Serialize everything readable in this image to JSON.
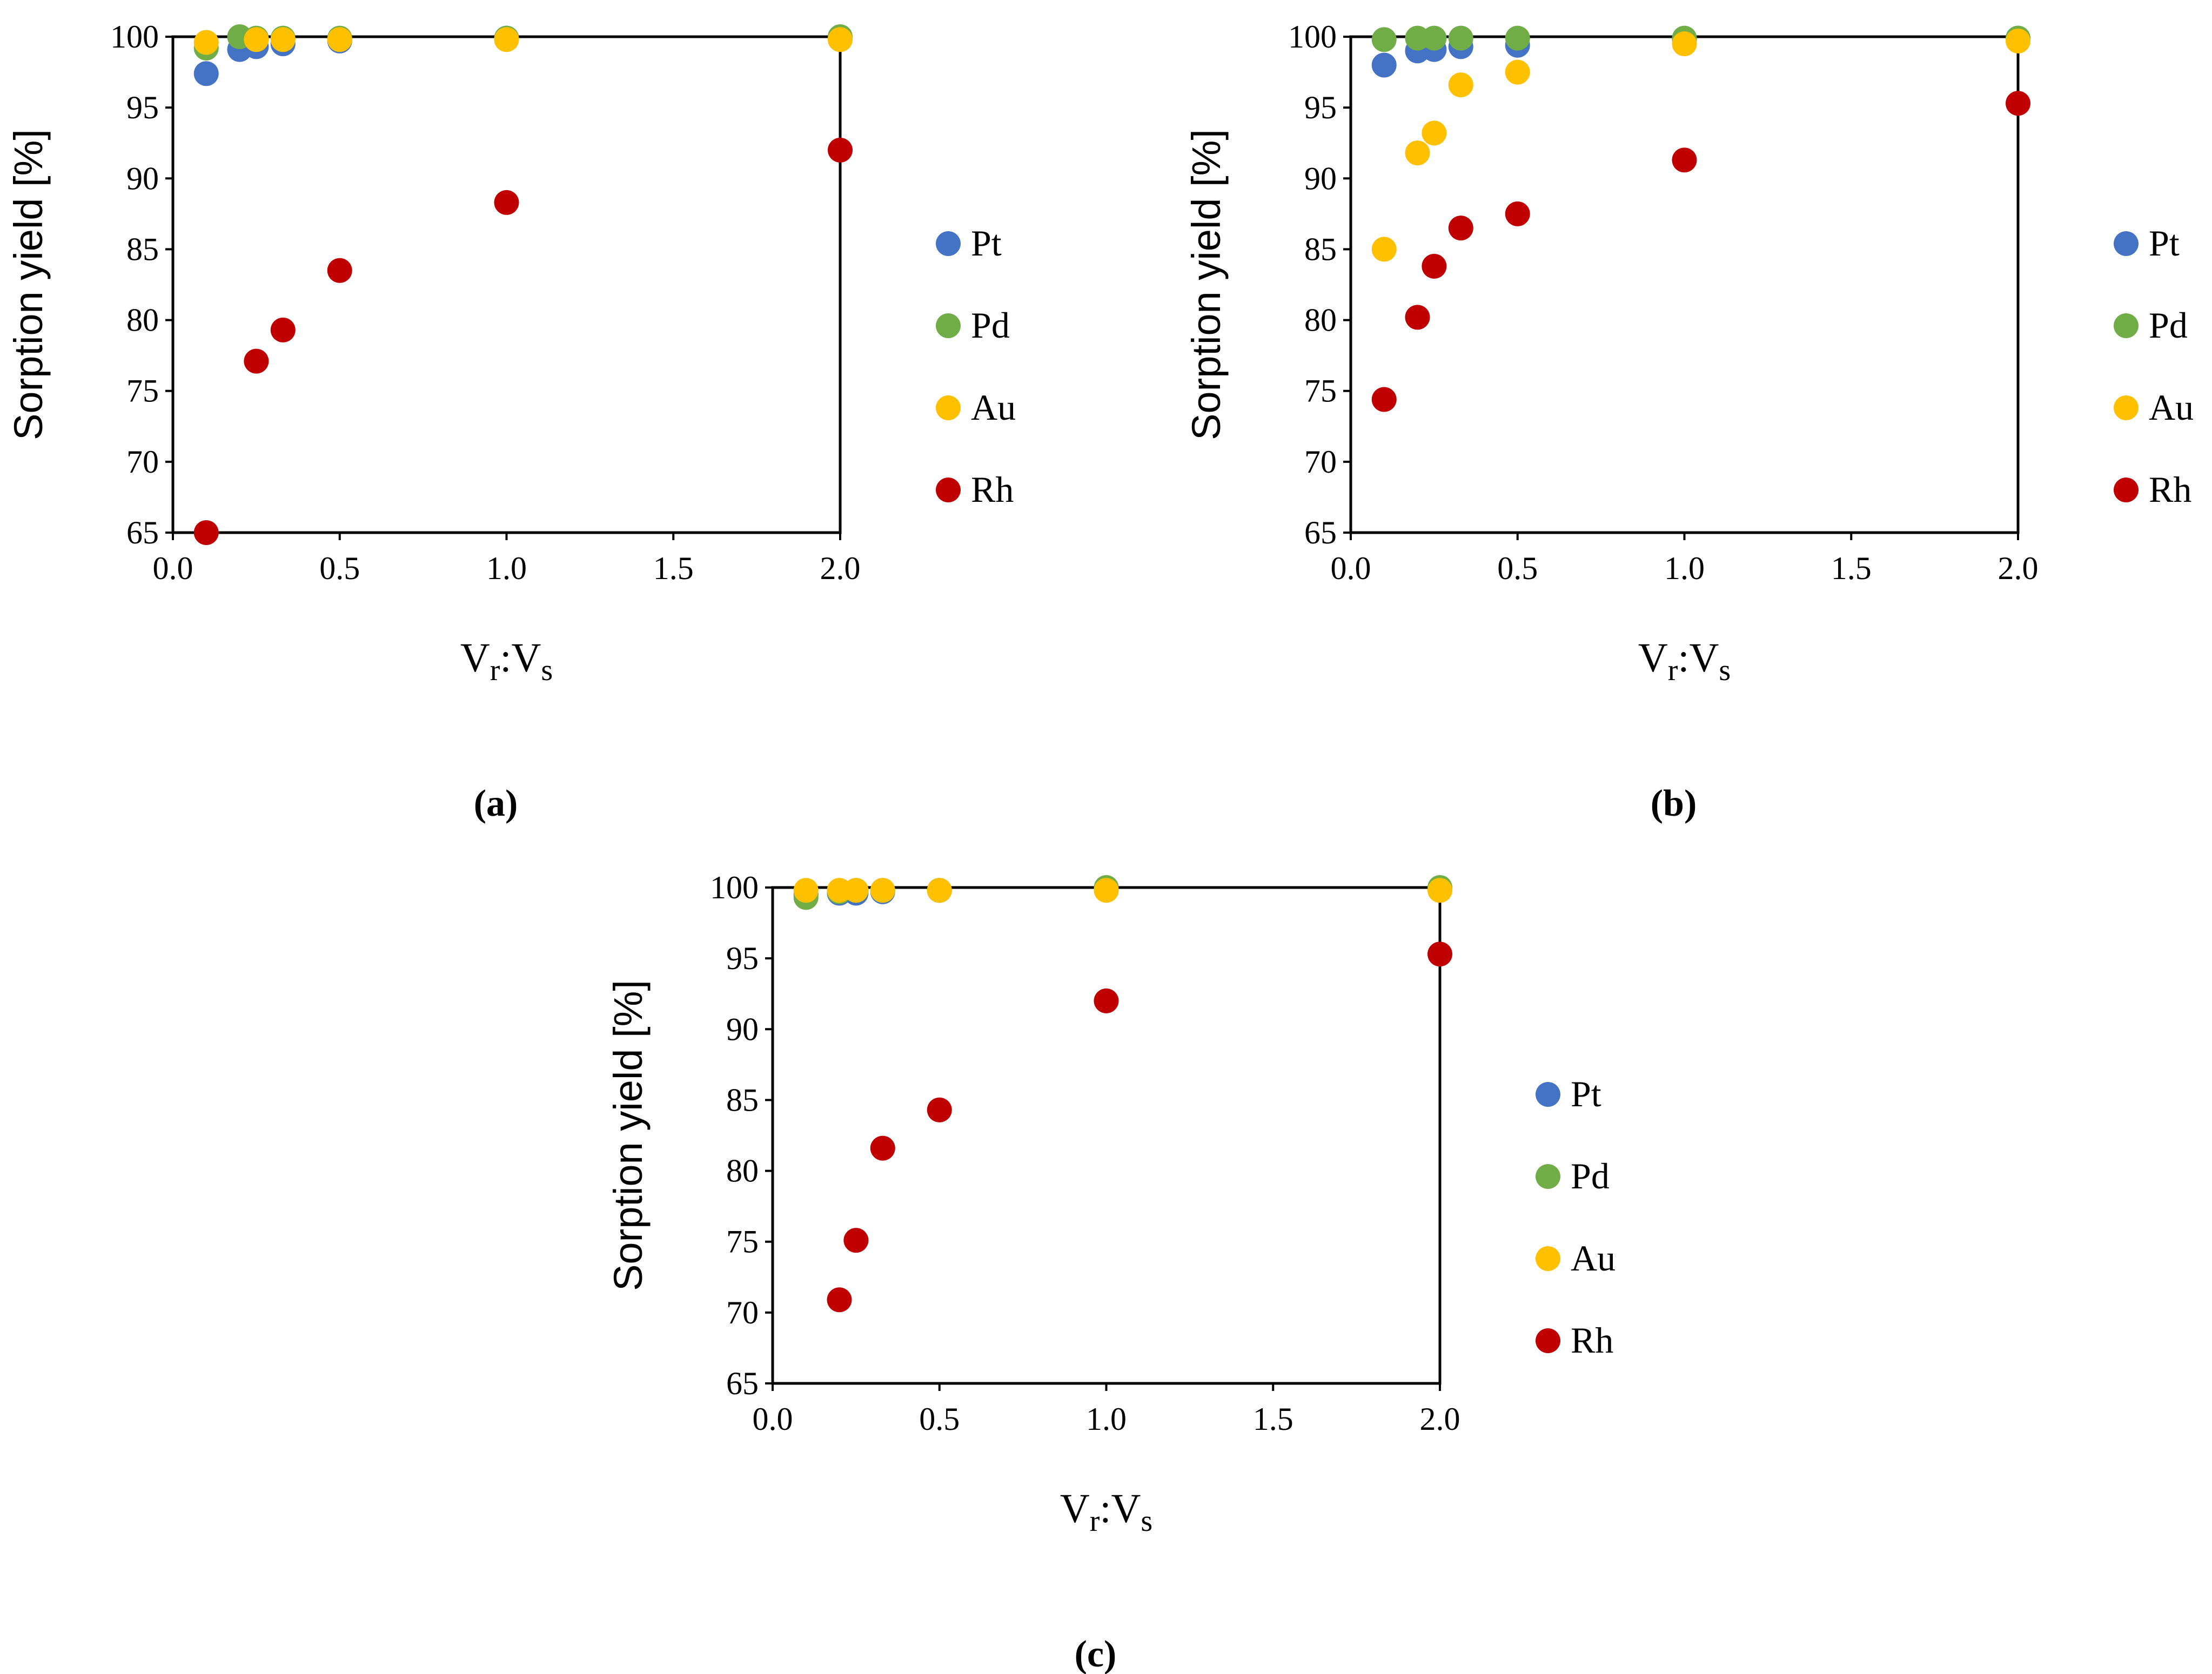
{
  "colors": {
    "Pt": "#4472C4",
    "Pd": "#70AD47",
    "Au": "#FFC000",
    "Rh": "#C00000"
  },
  "chart_data": [
    {
      "type": "scatter",
      "panel": "(a)",
      "xlabel": {
        "main": "V",
        "sub1": "r",
        "sep": ":",
        "main2": "V",
        "sub2": "s"
      },
      "ylabel": "Sorption yield [%]",
      "xlim": [
        0,
        2
      ],
      "ylim": [
        65,
        100
      ],
      "xticks": [
        "0.0",
        "0.5",
        "1.0",
        "1.5",
        "2.0"
      ],
      "yticks": [
        "65",
        "70",
        "75",
        "80",
        "85",
        "90",
        "95",
        "100"
      ],
      "legend_position": "right",
      "legend": [
        "Pt",
        "Pd",
        "Au",
        "Rh"
      ],
      "series": [
        {
          "name": "Pt",
          "points": [
            [
              0.1,
              97.4
            ],
            [
              0.2,
              99.1
            ],
            [
              0.25,
              99.3
            ],
            [
              0.33,
              99.5
            ],
            [
              0.5,
              99.7
            ],
            [
              1.0,
              99.9
            ],
            [
              2.0,
              99.9
            ]
          ]
        },
        {
          "name": "Pd",
          "points": [
            [
              0.1,
              99.2
            ],
            [
              0.2,
              100.0
            ],
            [
              0.25,
              99.9
            ],
            [
              0.33,
              99.9
            ],
            [
              0.5,
              99.9
            ],
            [
              1.0,
              99.9
            ],
            [
              2.0,
              100.0
            ]
          ]
        },
        {
          "name": "Au",
          "points": [
            [
              0.1,
              99.6
            ],
            [
              0.25,
              99.8
            ],
            [
              0.33,
              99.8
            ],
            [
              0.5,
              99.8
            ],
            [
              1.0,
              99.8
            ],
            [
              2.0,
              99.8
            ]
          ]
        },
        {
          "name": "Rh",
          "points": [
            [
              0.1,
              65.0
            ],
            [
              0.25,
              77.1
            ],
            [
              0.33,
              79.3
            ],
            [
              0.5,
              83.5
            ],
            [
              1.0,
              88.3
            ],
            [
              2.0,
              92.0
            ]
          ]
        }
      ]
    },
    {
      "type": "scatter",
      "panel": "(b)",
      "xlabel": {
        "main": "V",
        "sub1": "r",
        "sep": ":",
        "main2": "V",
        "sub2": "s"
      },
      "ylabel": "Sorption yield [%]",
      "xlim": [
        0,
        2
      ],
      "ylim": [
        65,
        100
      ],
      "xticks": [
        "0.0",
        "0.5",
        "1.0",
        "1.5",
        "2.0"
      ],
      "yticks": [
        "65",
        "70",
        "75",
        "80",
        "85",
        "90",
        "95",
        "100"
      ],
      "legend_position": "right",
      "legend": [
        "Pt",
        "Pd",
        "Au",
        "Rh"
      ],
      "series": [
        {
          "name": "Pt",
          "points": [
            [
              0.1,
              98.0
            ],
            [
              0.2,
              99.0
            ],
            [
              0.25,
              99.1
            ],
            [
              0.33,
              99.3
            ],
            [
              0.5,
              99.4
            ],
            [
              1.0,
              99.8
            ],
            [
              2.0,
              99.9
            ]
          ]
        },
        {
          "name": "Pd",
          "points": [
            [
              0.1,
              99.8
            ],
            [
              0.2,
              99.9
            ],
            [
              0.25,
              99.9
            ],
            [
              0.33,
              99.9
            ],
            [
              0.5,
              99.9
            ],
            [
              1.0,
              99.9
            ],
            [
              2.0,
              99.9
            ]
          ]
        },
        {
          "name": "Au",
          "points": [
            [
              0.1,
              85.0
            ],
            [
              0.2,
              91.8
            ],
            [
              0.25,
              93.2
            ],
            [
              0.33,
              96.6
            ],
            [
              0.5,
              97.5
            ],
            [
              1.0,
              99.5
            ],
            [
              2.0,
              99.7
            ]
          ]
        },
        {
          "name": "Rh",
          "points": [
            [
              0.1,
              74.4
            ],
            [
              0.2,
              80.2
            ],
            [
              0.25,
              83.8
            ],
            [
              0.33,
              86.5
            ],
            [
              0.5,
              87.5
            ],
            [
              1.0,
              91.3
            ],
            [
              2.0,
              95.3
            ]
          ]
        }
      ]
    },
    {
      "type": "scatter",
      "panel": "(c)",
      "xlabel": {
        "main": "V",
        "sub1": "r",
        "sep": ":",
        "main2": "V",
        "sub2": "s"
      },
      "ylabel": "Sorption yield [%]",
      "xlim": [
        0,
        2
      ],
      "ylim": [
        65,
        100
      ],
      "xticks": [
        "0.0",
        "0.5",
        "1.0",
        "1.5",
        "2.0"
      ],
      "yticks": [
        "65",
        "70",
        "75",
        "80",
        "85",
        "90",
        "95",
        "100"
      ],
      "legend_position": "right",
      "legend": [
        "Pt",
        "Pd",
        "Au",
        "Rh"
      ],
      "series": [
        {
          "name": "Pt",
          "points": [
            [
              0.1,
              99.5
            ],
            [
              0.2,
              99.6
            ],
            [
              0.25,
              99.6
            ],
            [
              0.33,
              99.7
            ],
            [
              0.5,
              99.8
            ],
            [
              1.0,
              99.9
            ],
            [
              2.0,
              99.9
            ]
          ]
        },
        {
          "name": "Pd",
          "points": [
            [
              0.1,
              99.3
            ],
            [
              0.2,
              99.7
            ],
            [
              0.25,
              99.8
            ],
            [
              0.33,
              99.8
            ],
            [
              0.5,
              99.8
            ],
            [
              1.0,
              100.0
            ],
            [
              2.0,
              100.0
            ]
          ]
        },
        {
          "name": "Au",
          "points": [
            [
              0.1,
              99.8
            ],
            [
              0.2,
              99.8
            ],
            [
              0.25,
              99.8
            ],
            [
              0.33,
              99.8
            ],
            [
              0.5,
              99.8
            ],
            [
              1.0,
              99.8
            ],
            [
              2.0,
              99.8
            ]
          ]
        },
        {
          "name": "Rh",
          "points": [
            [
              0.2,
              70.9
            ],
            [
              0.25,
              75.1
            ],
            [
              0.33,
              81.6
            ],
            [
              0.5,
              84.3
            ],
            [
              1.0,
              92.0
            ],
            [
              2.0,
              95.3
            ]
          ]
        }
      ]
    }
  ]
}
